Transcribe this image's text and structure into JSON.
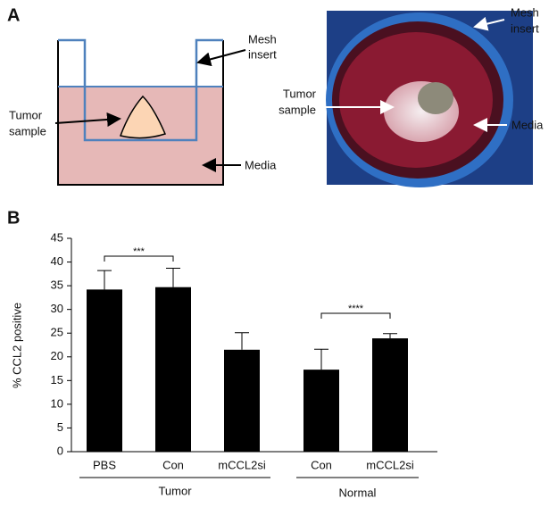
{
  "panel_labels": [
    "A",
    "B"
  ],
  "panel_a": {
    "diagram": {
      "mesh_insert": [
        "Mesh",
        "insert"
      ],
      "tumor_sample": [
        "Tumor",
        "sample"
      ],
      "media": "Media"
    },
    "photo": {
      "mesh_insert": [
        "Mesh",
        "insert"
      ],
      "tumor_sample": [
        "Tumor",
        "sample"
      ],
      "media": "Media"
    }
  },
  "chart_data": {
    "type": "bar",
    "y_label": "% CCL2 positive",
    "color": "#000000",
    "ylim": [
      0,
      45
    ],
    "yticks": [
      0,
      5,
      10,
      15,
      20,
      25,
      30,
      35,
      40,
      45
    ],
    "groups": [
      {
        "name": "Tumor",
        "categories": [
          "PBS",
          "Con",
          "mCCL2si"
        ],
        "values": [
          34.2,
          34.7,
          21.5
        ],
        "errors": [
          4.0,
          4.0,
          3.6
        ]
      },
      {
        "name": "Normal",
        "categories": [
          "Con",
          "mCCL2si"
        ],
        "values": [
          17.3,
          23.9
        ],
        "errors": [
          4.3,
          1.0
        ]
      }
    ],
    "annotations": [
      "***",
      "****"
    ]
  }
}
